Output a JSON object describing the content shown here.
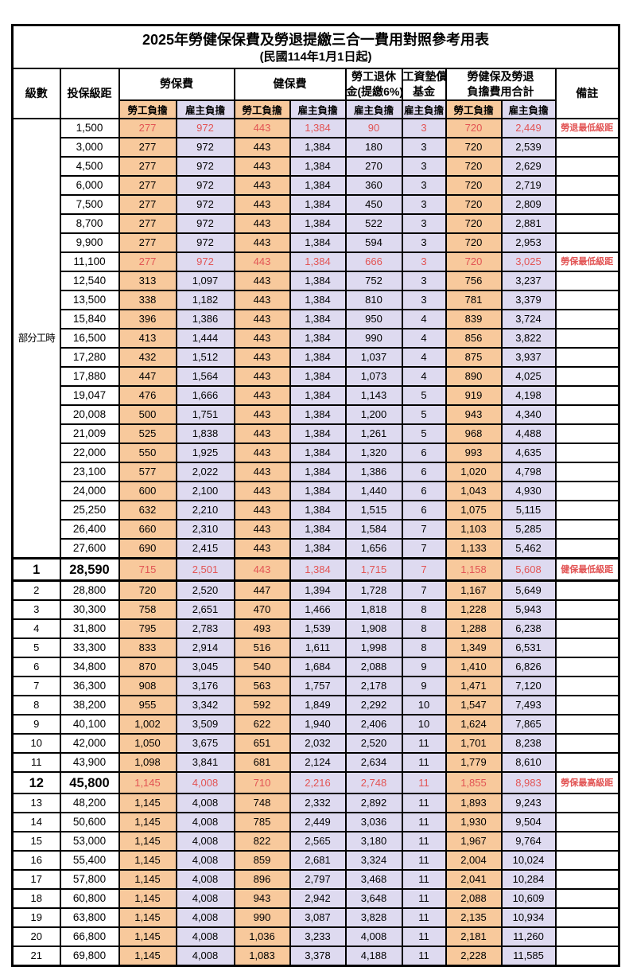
{
  "title": "2025年勞健保保費及勞退提繳三合一費用對照參考用表",
  "subtitle": "(民國114年1月1日起)",
  "colors": {
    "employee_col_bg": "#f8c99c",
    "employer_col_bg": "#dedaf0",
    "highlight_red": "#e25454",
    "border": "#000000"
  },
  "header": {
    "level": "級數",
    "bracket": "投保級距",
    "labor_insurance": "勞保費",
    "health_insurance": "健保費",
    "pension_line1": "勞工退休",
    "pension_line2": "金(提繳6%)",
    "wage_fund_line1": "工資墊償",
    "wage_fund_line2": "基金",
    "total_line1": "勞健保及勞退",
    "total_line2": "負擔費用合計",
    "note": "備註",
    "employee": "勞工負擔",
    "employer": "雇主負擔"
  },
  "group_label": "部分工時",
  "rows": [
    {
      "level": "",
      "bracket": "1,500",
      "values": [
        "277",
        "972",
        "443",
        "1,384",
        "90",
        "3",
        "720",
        "2,449"
      ],
      "note": "勞退最低級距",
      "red": true,
      "key": false
    },
    {
      "level": "",
      "bracket": "3,000",
      "values": [
        "277",
        "972",
        "443",
        "1,384",
        "180",
        "3",
        "720",
        "2,539"
      ],
      "note": "",
      "red": false,
      "key": false
    },
    {
      "level": "",
      "bracket": "4,500",
      "values": [
        "277",
        "972",
        "443",
        "1,384",
        "270",
        "3",
        "720",
        "2,629"
      ],
      "note": "",
      "red": false,
      "key": false
    },
    {
      "level": "",
      "bracket": "6,000",
      "values": [
        "277",
        "972",
        "443",
        "1,384",
        "360",
        "3",
        "720",
        "2,719"
      ],
      "note": "",
      "red": false,
      "key": false
    },
    {
      "level": "",
      "bracket": "7,500",
      "values": [
        "277",
        "972",
        "443",
        "1,384",
        "450",
        "3",
        "720",
        "2,809"
      ],
      "note": "",
      "red": false,
      "key": false
    },
    {
      "level": "",
      "bracket": "8,700",
      "values": [
        "277",
        "972",
        "443",
        "1,384",
        "522",
        "3",
        "720",
        "2,881"
      ],
      "note": "",
      "red": false,
      "key": false
    },
    {
      "level": "",
      "bracket": "9,900",
      "values": [
        "277",
        "972",
        "443",
        "1,384",
        "594",
        "3",
        "720",
        "2,953"
      ],
      "note": "",
      "red": false,
      "key": false
    },
    {
      "level": "",
      "bracket": "11,100",
      "values": [
        "277",
        "972",
        "443",
        "1,384",
        "666",
        "3",
        "720",
        "3,025"
      ],
      "note": "勞保最低級距",
      "red": true,
      "key": false
    },
    {
      "level": "",
      "bracket": "12,540",
      "values": [
        "313",
        "1,097",
        "443",
        "1,384",
        "752",
        "3",
        "756",
        "3,237"
      ],
      "note": "",
      "red": false,
      "key": false
    },
    {
      "level": "",
      "bracket": "13,500",
      "values": [
        "338",
        "1,182",
        "443",
        "1,384",
        "810",
        "3",
        "781",
        "3,379"
      ],
      "note": "",
      "red": false,
      "key": false
    },
    {
      "level": "",
      "bracket": "15,840",
      "values": [
        "396",
        "1,386",
        "443",
        "1,384",
        "950",
        "4",
        "839",
        "3,724"
      ],
      "note": "",
      "red": false,
      "key": false
    },
    {
      "level": "",
      "bracket": "16,500",
      "values": [
        "413",
        "1,444",
        "443",
        "1,384",
        "990",
        "4",
        "856",
        "3,822"
      ],
      "note": "",
      "red": false,
      "key": false
    },
    {
      "level": "",
      "bracket": "17,280",
      "values": [
        "432",
        "1,512",
        "443",
        "1,384",
        "1,037",
        "4",
        "875",
        "3,937"
      ],
      "note": "",
      "red": false,
      "key": false
    },
    {
      "level": "",
      "bracket": "17,880",
      "values": [
        "447",
        "1,564",
        "443",
        "1,384",
        "1,073",
        "4",
        "890",
        "4,025"
      ],
      "note": "",
      "red": false,
      "key": false
    },
    {
      "level": "",
      "bracket": "19,047",
      "values": [
        "476",
        "1,666",
        "443",
        "1,384",
        "1,143",
        "5",
        "919",
        "4,198"
      ],
      "note": "",
      "red": false,
      "key": false
    },
    {
      "level": "",
      "bracket": "20,008",
      "values": [
        "500",
        "1,751",
        "443",
        "1,384",
        "1,200",
        "5",
        "943",
        "4,340"
      ],
      "note": "",
      "red": false,
      "key": false
    },
    {
      "level": "",
      "bracket": "21,009",
      "values": [
        "525",
        "1,838",
        "443",
        "1,384",
        "1,261",
        "5",
        "968",
        "4,488"
      ],
      "note": "",
      "red": false,
      "key": false
    },
    {
      "level": "",
      "bracket": "22,000",
      "values": [
        "550",
        "1,925",
        "443",
        "1,384",
        "1,320",
        "6",
        "993",
        "4,635"
      ],
      "note": "",
      "red": false,
      "key": false
    },
    {
      "level": "",
      "bracket": "23,100",
      "values": [
        "577",
        "2,022",
        "443",
        "1,384",
        "1,386",
        "6",
        "1,020",
        "4,798"
      ],
      "note": "",
      "red": false,
      "key": false
    },
    {
      "level": "",
      "bracket": "24,000",
      "values": [
        "600",
        "2,100",
        "443",
        "1,384",
        "1,440",
        "6",
        "1,043",
        "4,930"
      ],
      "note": "",
      "red": false,
      "key": false
    },
    {
      "level": "",
      "bracket": "25,250",
      "values": [
        "632",
        "2,210",
        "443",
        "1,384",
        "1,515",
        "6",
        "1,075",
        "5,115"
      ],
      "note": "",
      "red": false,
      "key": false
    },
    {
      "level": "",
      "bracket": "26,400",
      "values": [
        "660",
        "2,310",
        "443",
        "1,384",
        "1,584",
        "7",
        "1,103",
        "5,285"
      ],
      "note": "",
      "red": false,
      "key": false
    },
    {
      "level": "",
      "bracket": "27,600",
      "values": [
        "690",
        "2,415",
        "443",
        "1,384",
        "1,656",
        "7",
        "1,133",
        "5,462"
      ],
      "note": "",
      "red": false,
      "key": false
    },
    {
      "level": "1",
      "bracket": "28,590",
      "values": [
        "715",
        "2,501",
        "443",
        "1,384",
        "1,715",
        "7",
        "1,158",
        "5,608"
      ],
      "note": "健保最低級距",
      "red": true,
      "key": true
    },
    {
      "level": "2",
      "bracket": "28,800",
      "values": [
        "720",
        "2,520",
        "447",
        "1,394",
        "1,728",
        "7",
        "1,167",
        "5,649"
      ],
      "note": "",
      "red": false,
      "key": false
    },
    {
      "level": "3",
      "bracket": "30,300",
      "values": [
        "758",
        "2,651",
        "470",
        "1,466",
        "1,818",
        "8",
        "1,228",
        "5,943"
      ],
      "note": "",
      "red": false,
      "key": false
    },
    {
      "level": "4",
      "bracket": "31,800",
      "values": [
        "795",
        "2,783",
        "493",
        "1,539",
        "1,908",
        "8",
        "1,288",
        "6,238"
      ],
      "note": "",
      "red": false,
      "key": false
    },
    {
      "level": "5",
      "bracket": "33,300",
      "values": [
        "833",
        "2,914",
        "516",
        "1,611",
        "1,998",
        "8",
        "1,349",
        "6,531"
      ],
      "note": "",
      "red": false,
      "key": false
    },
    {
      "level": "6",
      "bracket": "34,800",
      "values": [
        "870",
        "3,045",
        "540",
        "1,684",
        "2,088",
        "9",
        "1,410",
        "6,826"
      ],
      "note": "",
      "red": false,
      "key": false
    },
    {
      "level": "7",
      "bracket": "36,300",
      "values": [
        "908",
        "3,176",
        "563",
        "1,757",
        "2,178",
        "9",
        "1,471",
        "7,120"
      ],
      "note": "",
      "red": false,
      "key": false
    },
    {
      "level": "8",
      "bracket": "38,200",
      "values": [
        "955",
        "3,342",
        "592",
        "1,849",
        "2,292",
        "10",
        "1,547",
        "7,493"
      ],
      "note": "",
      "red": false,
      "key": false
    },
    {
      "level": "9",
      "bracket": "40,100",
      "values": [
        "1,002",
        "3,509",
        "622",
        "1,940",
        "2,406",
        "10",
        "1,624",
        "7,865"
      ],
      "note": "",
      "red": false,
      "key": false
    },
    {
      "level": "10",
      "bracket": "42,000",
      "values": [
        "1,050",
        "3,675",
        "651",
        "2,032",
        "2,520",
        "11",
        "1,701",
        "8,238"
      ],
      "note": "",
      "red": false,
      "key": false
    },
    {
      "level": "11",
      "bracket": "43,900",
      "values": [
        "1,098",
        "3,841",
        "681",
        "2,124",
        "2,634",
        "11",
        "1,779",
        "8,610"
      ],
      "note": "",
      "red": false,
      "key": false
    },
    {
      "level": "12",
      "bracket": "45,800",
      "values": [
        "1,145",
        "4,008",
        "710",
        "2,216",
        "2,748",
        "11",
        "1,855",
        "8,983"
      ],
      "note": "勞保最高級距",
      "red": true,
      "key": true
    },
    {
      "level": "13",
      "bracket": "48,200",
      "values": [
        "1,145",
        "4,008",
        "748",
        "2,332",
        "2,892",
        "11",
        "1,893",
        "9,243"
      ],
      "note": "",
      "red": false,
      "key": false
    },
    {
      "level": "14",
      "bracket": "50,600",
      "values": [
        "1,145",
        "4,008",
        "785",
        "2,449",
        "3,036",
        "11",
        "1,930",
        "9,504"
      ],
      "note": "",
      "red": false,
      "key": false
    },
    {
      "level": "15",
      "bracket": "53,000",
      "values": [
        "1,145",
        "4,008",
        "822",
        "2,565",
        "3,180",
        "11",
        "1,967",
        "9,764"
      ],
      "note": "",
      "red": false,
      "key": false
    },
    {
      "level": "16",
      "bracket": "55,400",
      "values": [
        "1,145",
        "4,008",
        "859",
        "2,681",
        "3,324",
        "11",
        "2,004",
        "10,024"
      ],
      "note": "",
      "red": false,
      "key": false
    },
    {
      "level": "17",
      "bracket": "57,800",
      "values": [
        "1,145",
        "4,008",
        "896",
        "2,797",
        "3,468",
        "11",
        "2,041",
        "10,284"
      ],
      "note": "",
      "red": false,
      "key": false
    },
    {
      "level": "18",
      "bracket": "60,800",
      "values": [
        "1,145",
        "4,008",
        "943",
        "2,942",
        "3,648",
        "11",
        "2,088",
        "10,609"
      ],
      "note": "",
      "red": false,
      "key": false
    },
    {
      "level": "19",
      "bracket": "63,800",
      "values": [
        "1,145",
        "4,008",
        "990",
        "3,087",
        "3,828",
        "11",
        "2,135",
        "10,934"
      ],
      "note": "",
      "red": false,
      "key": false
    },
    {
      "level": "20",
      "bracket": "66,800",
      "values": [
        "1,145",
        "4,008",
        "1,036",
        "3,233",
        "4,008",
        "11",
        "2,181",
        "11,260"
      ],
      "note": "",
      "red": false,
      "key": false
    },
    {
      "level": "21",
      "bracket": "69,800",
      "values": [
        "1,145",
        "4,008",
        "1,083",
        "3,378",
        "4,188",
        "11",
        "2,228",
        "11,585"
      ],
      "note": "",
      "red": false,
      "key": false
    }
  ]
}
